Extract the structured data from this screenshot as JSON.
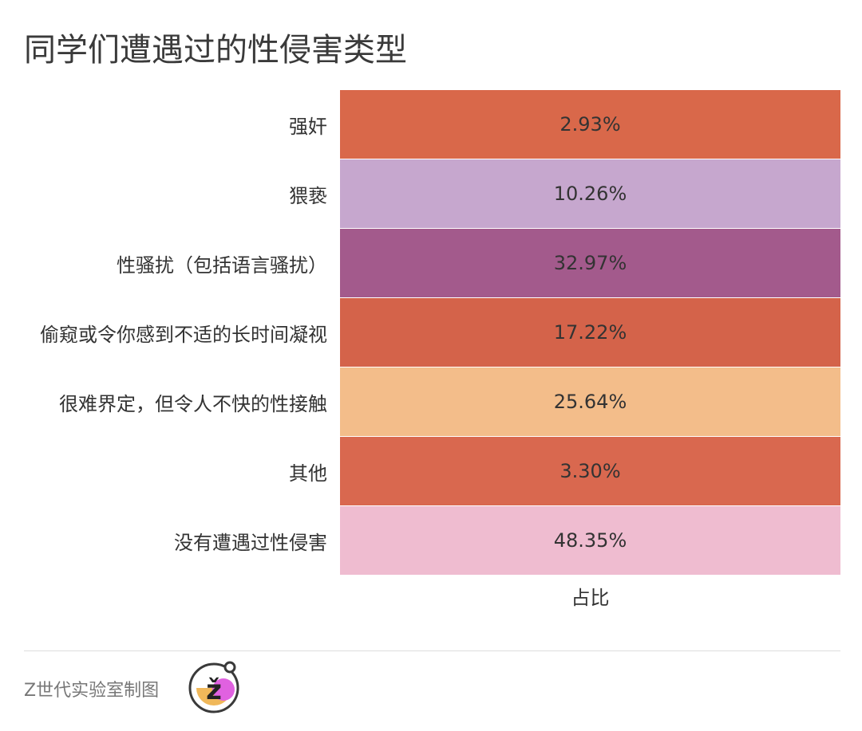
{
  "title": "同学们遭遇过的性侵害类型",
  "column_header": "占比",
  "footer": {
    "source": "Z世代实验室制图",
    "logo_letter": "ž"
  },
  "chart_data": {
    "type": "table",
    "title": "同学们遭遇过的性侵害类型",
    "columns": [
      "占比"
    ],
    "rows": [
      {
        "label": "强奸",
        "value": "2.93%",
        "number": 2.93,
        "color": "#d9684a"
      },
      {
        "label": "猥亵",
        "value": "10.26%",
        "number": 10.26,
        "color": "#c6a7ce"
      },
      {
        "label": "性骚扰（包括语言骚扰）",
        "value": "32.97%",
        "number": 32.97,
        "color": "#a35a8c"
      },
      {
        "label": "偷窥或令你感到不适的长时间凝视",
        "value": "17.22%",
        "number": 17.22,
        "color": "#d4634a"
      },
      {
        "label": "很难界定，但令人不快的性接触",
        "value": "25.64%",
        "number": 25.64,
        "color": "#f3bd8a"
      },
      {
        "label": "其他",
        "value": "3.30%",
        "number": 3.3,
        "color": "#d9684f"
      },
      {
        "label": "没有遭遇过性侵害",
        "value": "48.35%",
        "number": 48.35,
        "color": "#efbcd0"
      }
    ]
  }
}
